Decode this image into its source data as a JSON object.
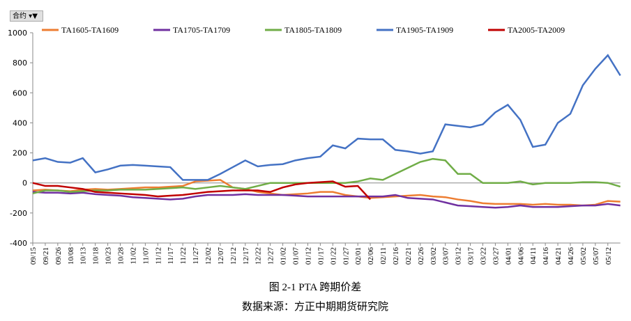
{
  "filter_button": {
    "label": "合约"
  },
  "chart_data": {
    "type": "line",
    "caption": "图 2-1 PTA 跨期价差",
    "source": "数据来源：方正中期期货研究院",
    "legend": "top",
    "categories": [
      "09/15",
      "09/21",
      "09/26",
      "10/08",
      "10/13",
      "10/18",
      "10/23",
      "10/28",
      "11/02",
      "11/07",
      "11/12",
      "11/17",
      "11/22",
      "11/27",
      "12/02",
      "12/07",
      "12/12",
      "12/17",
      "12/22",
      "12/27",
      "01/02",
      "01/07",
      "01/12",
      "01/17",
      "01/22",
      "01/27",
      "02/01",
      "02/06",
      "02/11",
      "02/16",
      "02/21",
      "02/26",
      "03/02",
      "03/07",
      "03/12",
      "03/17",
      "03/22",
      "03/27",
      "04/01",
      "04/06",
      "04/11",
      "04/16",
      "04/21",
      "04/26",
      "05/02",
      "05/07",
      "05/12",
      null
    ],
    "ylim": [
      -400,
      1000
    ],
    "yticks": [
      -400,
      -200,
      0,
      200,
      400,
      600,
      800,
      1000
    ],
    "series": [
      {
        "name": "TA1605-TA1609",
        "color": "#ed7d31",
        "values": [
          -50,
          -45,
          -50,
          -55,
          -45,
          -40,
          -45,
          -40,
          -35,
          -30,
          -30,
          -25,
          -20,
          10,
          15,
          20,
          -30,
          -40,
          -60,
          -70,
          -80,
          -75,
          -70,
          -60,
          -60,
          -80,
          -90,
          -100,
          -95,
          -90,
          -85,
          -80,
          -90,
          -95,
          -110,
          -120,
          -135,
          -140,
          -140,
          -140,
          -145,
          -140,
          -145,
          -145,
          -150,
          -145,
          -120,
          -125
        ]
      },
      {
        "name": "TA1705-TA1709",
        "color": "#7030a0",
        "values": [
          -60,
          -65,
          -65,
          -70,
          -65,
          -75,
          -80,
          -85,
          -95,
          -100,
          -105,
          -110,
          -105,
          -90,
          -80,
          -80,
          -80,
          -75,
          -80,
          -80,
          -80,
          -85,
          -90,
          -90,
          -90,
          -90,
          -90,
          -90,
          -90,
          -80,
          -100,
          -105,
          -110,
          -130,
          -150,
          -155,
          -160,
          -165,
          -160,
          -150,
          -160,
          -160,
          -160,
          -155,
          -150,
          -150,
          -140,
          -150
        ]
      },
      {
        "name": "TA1805-TA1809",
        "color": "#70ad47",
        "values": [
          -70,
          -50,
          -50,
          -60,
          -55,
          -50,
          -50,
          -45,
          -45,
          -45,
          -40,
          -35,
          -30,
          -40,
          -30,
          -20,
          -30,
          -40,
          -20,
          0,
          0,
          0,
          0,
          0,
          0,
          0,
          10,
          30,
          20,
          60,
          100,
          140,
          160,
          150,
          60,
          60,
          0,
          0,
          0,
          10,
          -10,
          0,
          0,
          0,
          5,
          5,
          0,
          -25
        ]
      },
      {
        "name": "TA1905-TA1909",
        "color": "#4472c4",
        "values": [
          150,
          165,
          140,
          135,
          165,
          70,
          90,
          115,
          120,
          115,
          110,
          105,
          20,
          20,
          20,
          60,
          105,
          150,
          110,
          120,
          125,
          150,
          165,
          175,
          250,
          230,
          295,
          290,
          290,
          220,
          210,
          195,
          210,
          390,
          380,
          370,
          390,
          470,
          520,
          420,
          240,
          255,
          400,
          460,
          650,
          760,
          850,
          715
        ]
      },
      {
        "name": "TA2005-TA2009",
        "color": "#c00000",
        "values": [
          0,
          -20,
          -20,
          -30,
          -40,
          -60,
          -65,
          -70,
          -75,
          -80,
          -90,
          -85,
          -80,
          -70,
          -60,
          -55,
          -50,
          -50,
          -50,
          -60,
          -30,
          -10,
          0,
          5,
          10,
          -25,
          -20,
          -110,
          null,
          null,
          null,
          null,
          null,
          null,
          null,
          null,
          null,
          null,
          null,
          null,
          null,
          null,
          null,
          null,
          null,
          null,
          null,
          null
        ]
      }
    ]
  }
}
